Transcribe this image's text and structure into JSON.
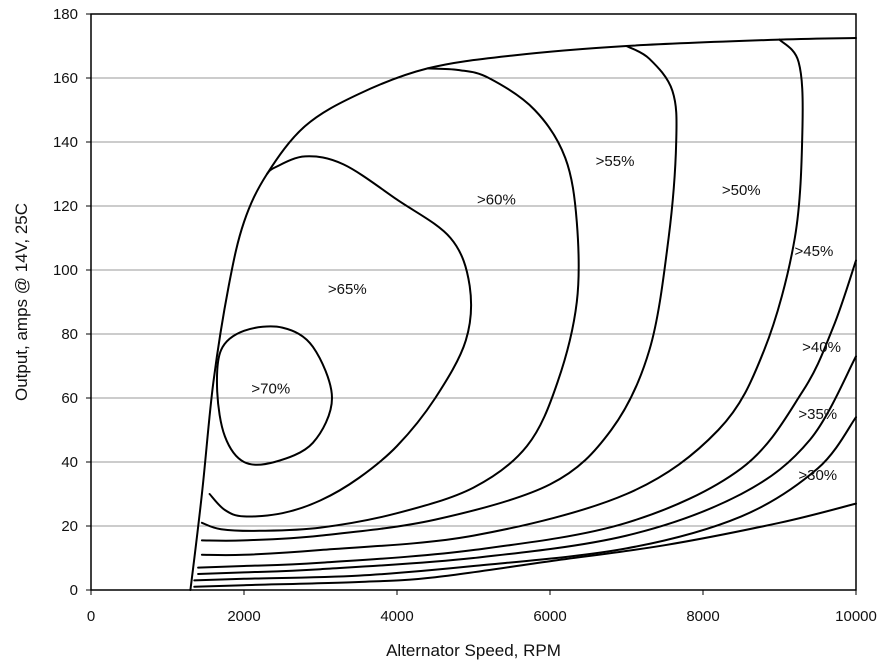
{
  "chart_data": {
    "type": "line",
    "subtype": "efficiency contour map",
    "title": "",
    "xlabel": "Alternator Speed, RPM",
    "ylabel": "Output, amps @ 14V, 25C",
    "xlim": [
      0,
      10000
    ],
    "ylim": [
      0,
      180
    ],
    "x_ticks": [
      0,
      2000,
      4000,
      6000,
      8000,
      10000
    ],
    "y_ticks": [
      0,
      20,
      40,
      60,
      80,
      100,
      120,
      140,
      160,
      180
    ],
    "grid": "horizontal",
    "line_color": "#000000",
    "grid_color": "#9a9a9a",
    "max_output_curve": [
      [
        1300,
        0
      ],
      [
        1450,
        30
      ],
      [
        1600,
        65
      ],
      [
        1800,
        95
      ],
      [
        2000,
        115
      ],
      [
        2300,
        130
      ],
      [
        2800,
        145
      ],
      [
        3500,
        155
      ],
      [
        4400,
        163
      ],
      [
        5500,
        167
      ],
      [
        7000,
        170
      ],
      [
        9000,
        172
      ],
      [
        10000,
        172.5
      ]
    ],
    "series": [
      {
        "name": ">70%",
        "closed": true,
        "points": [
          [
            1700,
            75
          ],
          [
            2000,
            81
          ],
          [
            2500,
            82
          ],
          [
            2900,
            76
          ],
          [
            3150,
            60
          ],
          [
            2900,
            46
          ],
          [
            2400,
            40
          ],
          [
            2000,
            40
          ],
          [
            1750,
            48
          ],
          [
            1650,
            62
          ]
        ]
      },
      {
        "name": ">65%",
        "closed": false,
        "points": [
          [
            1550,
            30
          ],
          [
            1750,
            25
          ],
          [
            2000,
            23
          ],
          [
            2500,
            24
          ],
          [
            3000,
            28
          ],
          [
            3500,
            35
          ],
          [
            4000,
            45
          ],
          [
            4500,
            60
          ],
          [
            4900,
            78
          ],
          [
            4950,
            95
          ],
          [
            4700,
            110
          ],
          [
            4000,
            122
          ],
          [
            3300,
            133
          ],
          [
            2800,
            135.5
          ],
          [
            2400,
            132
          ],
          [
            2300,
            130
          ]
        ]
      },
      {
        "name": ">60%",
        "closed": false,
        "points": [
          [
            1450,
            21
          ],
          [
            1700,
            19
          ],
          [
            2200,
            18.5
          ],
          [
            3000,
            19.5
          ],
          [
            4000,
            24
          ],
          [
            5000,
            32
          ],
          [
            5700,
            45
          ],
          [
            6100,
            65
          ],
          [
            6350,
            90
          ],
          [
            6350,
            115
          ],
          [
            6200,
            135
          ],
          [
            5800,
            150
          ],
          [
            5200,
            160
          ],
          [
            4800,
            162.5
          ],
          [
            4400,
            163
          ]
        ]
      },
      {
        "name": ">55%",
        "closed": false,
        "points": [
          [
            1450,
            15.5
          ],
          [
            2000,
            15.5
          ],
          [
            3000,
            17
          ],
          [
            4500,
            22
          ],
          [
            6000,
            33
          ],
          [
            6800,
            50
          ],
          [
            7300,
            75
          ],
          [
            7550,
            110
          ],
          [
            7650,
            140
          ],
          [
            7600,
            156
          ],
          [
            7300,
            166
          ],
          [
            7000,
            170
          ]
        ]
      },
      {
        "name": ">50%",
        "closed": false,
        "points": [
          [
            1450,
            11
          ],
          [
            2000,
            11
          ],
          [
            3000,
            12.5
          ],
          [
            5000,
            17
          ],
          [
            7000,
            30
          ],
          [
            8200,
            50
          ],
          [
            8800,
            75
          ],
          [
            9200,
            110
          ],
          [
            9300,
            145
          ],
          [
            9250,
            165
          ],
          [
            9000,
            172
          ]
        ]
      },
      {
        "name": ">45%",
        "closed": false,
        "points": [
          [
            1400,
            7
          ],
          [
            2000,
            7.5
          ],
          [
            3000,
            8.5
          ],
          [
            5000,
            12.5
          ],
          [
            7000,
            21
          ],
          [
            8500,
            38
          ],
          [
            9300,
            62
          ],
          [
            9700,
            82
          ],
          [
            10000,
            103
          ]
        ]
      },
      {
        "name": ">40%",
        "closed": false,
        "points": [
          [
            1400,
            5
          ],
          [
            2000,
            5.5
          ],
          [
            3000,
            6.5
          ],
          [
            5000,
            10
          ],
          [
            7000,
            17
          ],
          [
            8500,
            30
          ],
          [
            9400,
            47
          ],
          [
            10000,
            73
          ]
        ]
      },
      {
        "name": ">35%",
        "closed": false,
        "points": [
          [
            1350,
            3
          ],
          [
            2000,
            3.5
          ],
          [
            3500,
            4.5
          ],
          [
            5000,
            7.5
          ],
          [
            7000,
            13
          ],
          [
            8500,
            23
          ],
          [
            9500,
            38
          ],
          [
            10000,
            54
          ]
        ]
      },
      {
        "name": ">30%",
        "closed": false,
        "points": [
          [
            1350,
            1
          ],
          [
            2000,
            1.5
          ],
          [
            3500,
            2.5
          ],
          [
            4500,
            4
          ],
          [
            6000,
            9
          ],
          [
            7500,
            14
          ],
          [
            9000,
            21
          ],
          [
            10000,
            27
          ]
        ]
      }
    ],
    "annotations": [
      {
        "text": ">70%",
        "x": 2350,
        "y": 63
      },
      {
        "text": ">65%",
        "x": 3350,
        "y": 94
      },
      {
        "text": ">60%",
        "x": 5300,
        "y": 122
      },
      {
        "text": ">55%",
        "x": 6850,
        "y": 134
      },
      {
        "text": ">50%",
        "x": 8500,
        "y": 125
      },
      {
        "text": ">45%",
        "x": 9450,
        "y": 106
      },
      {
        "text": ">40%",
        "x": 9550,
        "y": 76
      },
      {
        "text": ">35%",
        "x": 9500,
        "y": 55
      },
      {
        "text": ">30%",
        "x": 9500,
        "y": 36
      }
    ]
  }
}
